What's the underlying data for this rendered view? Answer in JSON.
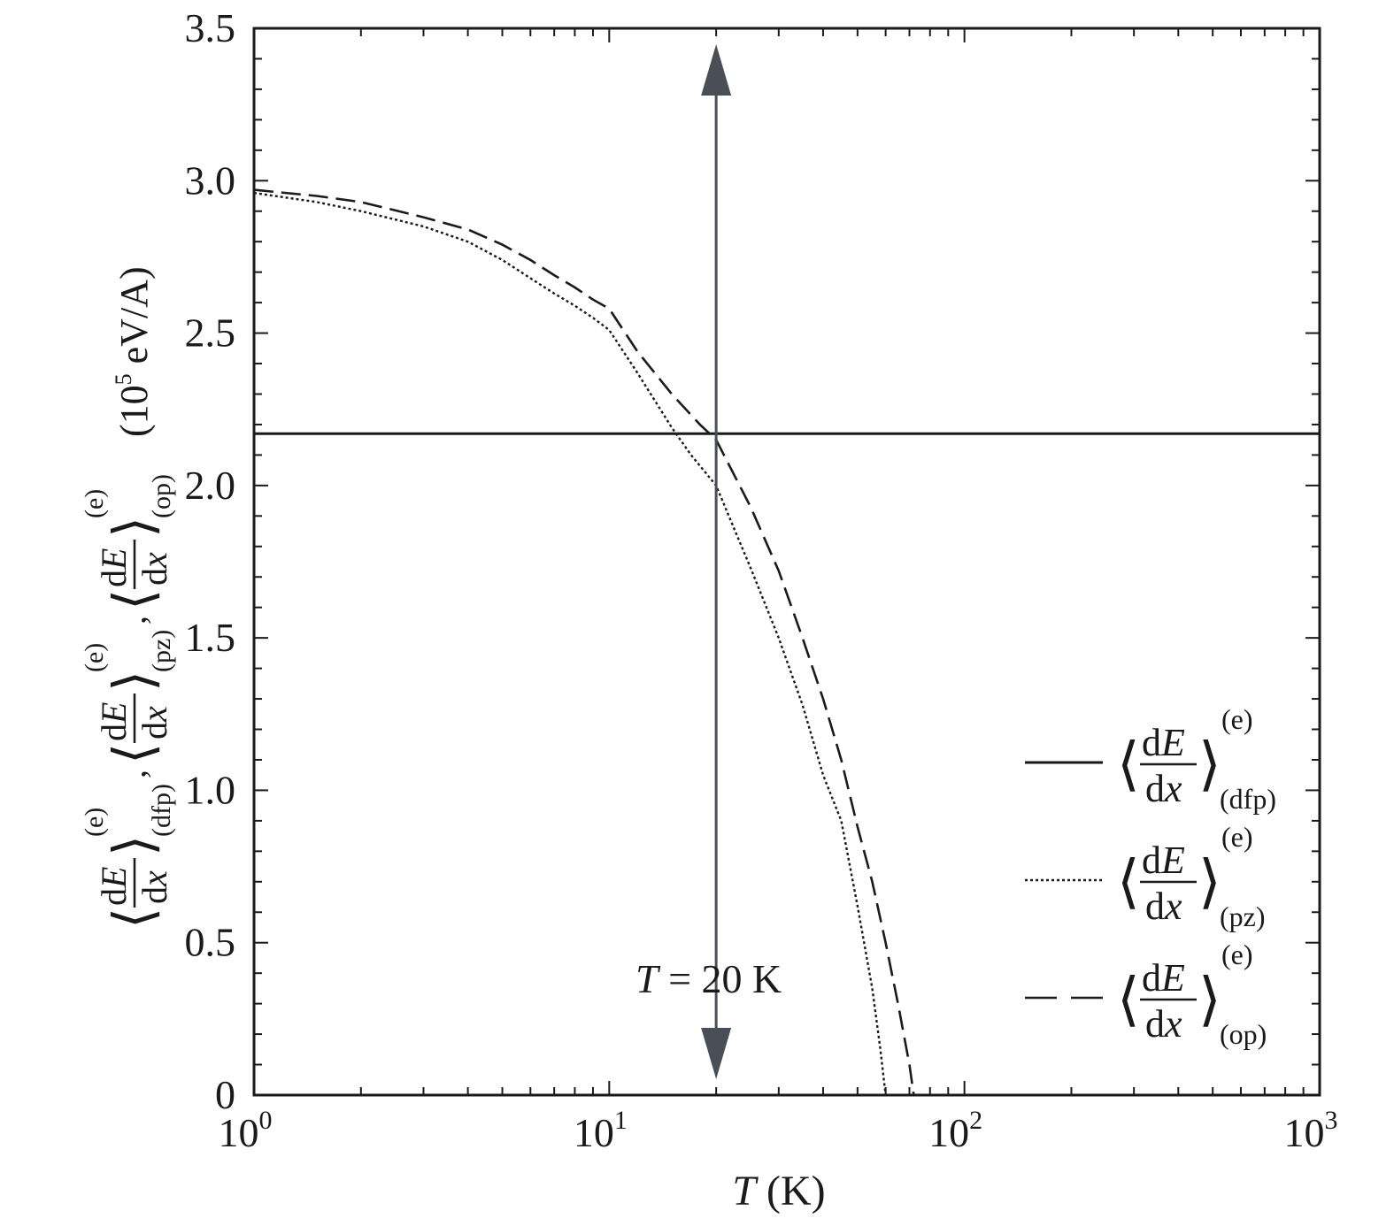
{
  "chart_data": {
    "type": "line",
    "xscale": "log",
    "xlim": [
      1,
      1000
    ],
    "ylim": [
      0,
      3.5
    ],
    "grid": false,
    "legend_position": "bottom-right",
    "x_ticks": [
      {
        "value": 1,
        "base": "10",
        "exp": "0"
      },
      {
        "value": 10,
        "base": "10",
        "exp": "1"
      },
      {
        "value": 100,
        "base": "10",
        "exp": "2"
      },
      {
        "value": 1000,
        "base": "10",
        "exp": "3"
      }
    ],
    "y_ticks": [
      {
        "value": 0,
        "label": "0"
      },
      {
        "value": 0.5,
        "label": "0.5"
      },
      {
        "value": 1.0,
        "label": "1.0"
      },
      {
        "value": 1.5,
        "label": "1.5"
      },
      {
        "value": 2.0,
        "label": "2.0"
      },
      {
        "value": 2.5,
        "label": "2.5"
      },
      {
        "value": 3.0,
        "label": "3.0"
      },
      {
        "value": 3.5,
        "label": "3.5"
      }
    ],
    "xlabel": {
      "var": "T",
      "unit": " (K)"
    },
    "ylabel": {
      "frac_num": "dE",
      "frac_den": "dx",
      "sup": "(e)",
      "subs": [
        "(dfp)",
        "(pz)",
        "(op)"
      ],
      "unit_prefix": "(10",
      "unit_exp": "5",
      "unit_suffix": " eV/A)"
    },
    "annotation": {
      "var": "T",
      "text": " = 20 K",
      "x": 20
    },
    "series": [
      {
        "name": "(dfp)",
        "style": "solid",
        "x": [
          1,
          1000
        ],
        "y": [
          2.17,
          2.17
        ]
      },
      {
        "name": "(pz)",
        "style": "dotted",
        "x": [
          1,
          1.5,
          2,
          3,
          4,
          5,
          6,
          7,
          8,
          9,
          10,
          12,
          15,
          17,
          20,
          25,
          30,
          35,
          40,
          45,
          50,
          55,
          58,
          60
        ],
        "y": [
          2.96,
          2.93,
          2.9,
          2.85,
          2.8,
          2.74,
          2.68,
          2.63,
          2.59,
          2.55,
          2.51,
          2.37,
          2.19,
          2.1,
          2.0,
          1.73,
          1.5,
          1.28,
          1.05,
          0.9,
          0.62,
          0.35,
          0.15,
          0.0
        ]
      },
      {
        "name": "(op)",
        "style": "dashed",
        "x": [
          1,
          1.5,
          2,
          3,
          4,
          5,
          6,
          7,
          8,
          9,
          10,
          12,
          15,
          18,
          20,
          25,
          30,
          35,
          40,
          45,
          50,
          55,
          60,
          65,
          70,
          72
        ],
        "y": [
          2.97,
          2.95,
          2.93,
          2.88,
          2.84,
          2.79,
          2.74,
          2.69,
          2.65,
          2.61,
          2.58,
          2.44,
          2.3,
          2.2,
          2.15,
          1.93,
          1.72,
          1.5,
          1.3,
          1.1,
          0.88,
          0.7,
          0.5,
          0.3,
          0.1,
          0.0
        ]
      }
    ]
  }
}
